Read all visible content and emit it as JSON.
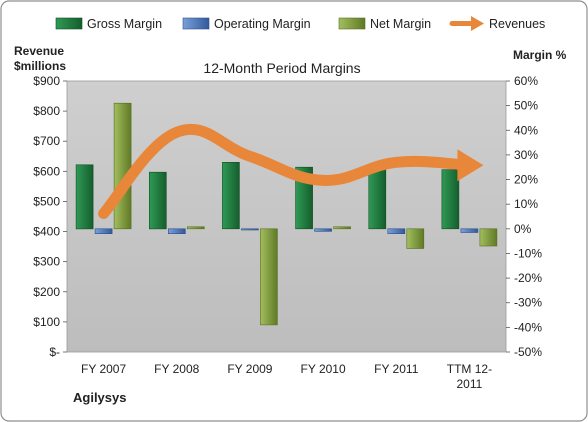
{
  "chart_data": {
    "type": "bar",
    "title": "12-Month Period Margins",
    "company": "Agilysys",
    "left_axis": {
      "title_line1": "Revenue",
      "title_line2": "$millions",
      "ylim": [
        0,
        900
      ],
      "ticks": [
        0,
        100,
        200,
        300,
        400,
        500,
        600,
        700,
        800,
        900
      ],
      "tick_labels": [
        "$-",
        "$100",
        "$200",
        "$300",
        "$400",
        "$500",
        "$600",
        "$700",
        "$800",
        "$900"
      ]
    },
    "right_axis": {
      "title": "Margin %",
      "ylim": [
        -50,
        60
      ],
      "ticks": [
        -50,
        -40,
        -30,
        -20,
        -10,
        0,
        10,
        20,
        30,
        40,
        50,
        60
      ],
      "tick_labels": [
        "-50%",
        "-40%",
        "-30%",
        "-20%",
        "-10%",
        "0%",
        "10%",
        "20%",
        "30%",
        "40%",
        "50%",
        "60%"
      ]
    },
    "categories": [
      "FY 2007",
      "FY 2008",
      "FY 2009",
      "FY 2010",
      "FY 2011",
      "TTM 12-2011"
    ],
    "category_labels": [
      [
        "FY 2007"
      ],
      [
        "FY 2008"
      ],
      [
        "FY 2009"
      ],
      [
        "FY 2010"
      ],
      [
        "FY 2011"
      ],
      [
        "TTM 12-",
        "2011"
      ]
    ],
    "series": [
      {
        "name": "Gross Margin",
        "kind": "bar",
        "axis": "right",
        "color": "#1e7a3e",
        "values": [
          26,
          23,
          27,
          25,
          24,
          24
        ]
      },
      {
        "name": "Operating Margin",
        "kind": "bar",
        "axis": "right",
        "color": "#4a74b8",
        "values": [
          -2,
          -2,
          -0.5,
          -1,
          -2,
          -1.5
        ]
      },
      {
        "name": "Net Margin",
        "kind": "bar",
        "axis": "right",
        "color": "#7f9a3a",
        "values": [
          51,
          0.8,
          -39,
          0.8,
          -8,
          -7
        ]
      },
      {
        "name": "Revenues",
        "kind": "line",
        "axis": "left",
        "color": "#e8873a",
        "values": [
          460,
          730,
          650,
          570,
          630,
          620
        ]
      }
    ],
    "legend_position": "top",
    "grid": false,
    "colors": {
      "plot_bg": "#c6c6c6",
      "frame": "#8f8f8f"
    }
  }
}
